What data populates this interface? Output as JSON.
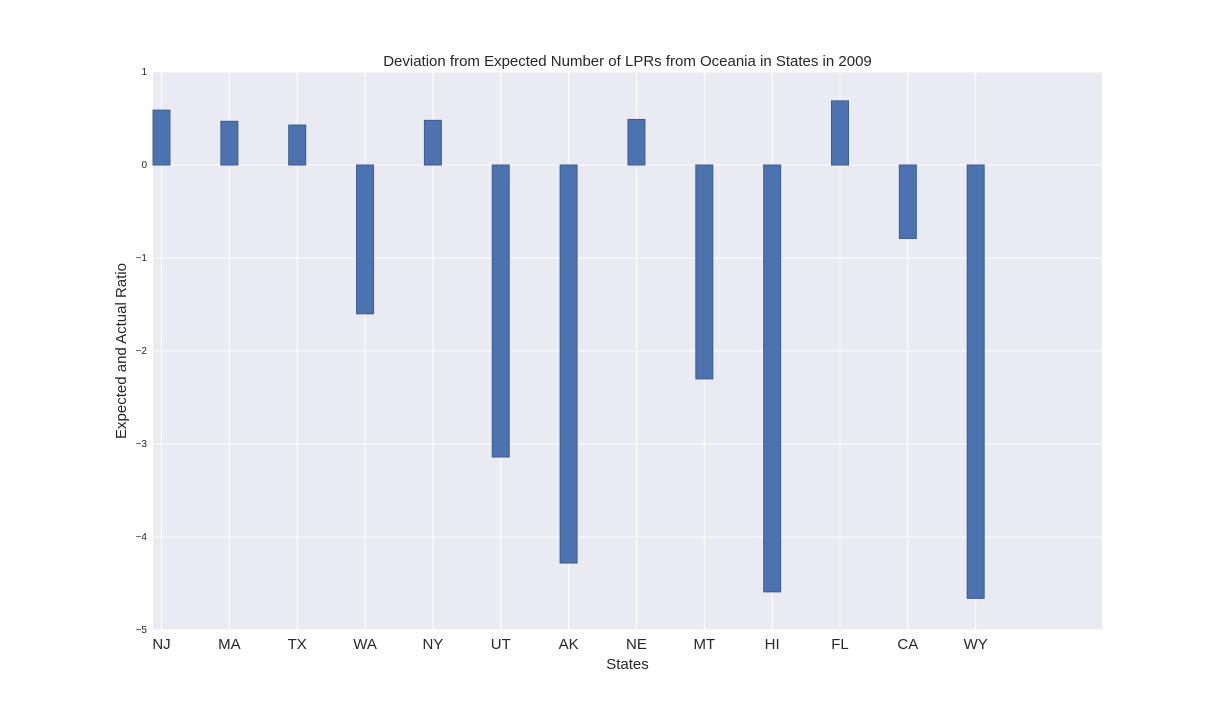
{
  "chart_data": {
    "type": "bar",
    "title": "Deviation from Expected Number of LPRs from Oceania in States in 2009",
    "xlabel": "States",
    "ylabel": "Expected and Actual Ratio",
    "categories": [
      "NJ",
      "MA",
      "TX",
      "WA",
      "NY",
      "UT",
      "AK",
      "NE",
      "MT",
      "HI",
      "FL",
      "CA",
      "WY"
    ],
    "values": [
      0.59,
      0.47,
      0.43,
      -1.6,
      0.48,
      -3.14,
      -4.28,
      0.49,
      -2.3,
      -4.59,
      0.69,
      -0.79,
      -4.66
    ],
    "ylim": [
      -5,
      1
    ],
    "yticks": [
      1,
      0,
      -1,
      -2,
      -3,
      -4,
      -5
    ],
    "ytick_labels": [
      "1",
      "0",
      "−1",
      "−2",
      "−3",
      "−4",
      "−5"
    ],
    "grid": true,
    "colors": {
      "bar": "#4c72b0",
      "bar_edge": "#3d5d92",
      "plot_background": "#eaeaf2",
      "grid": "#ffffff"
    }
  }
}
